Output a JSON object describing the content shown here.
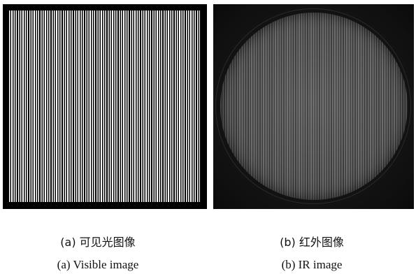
{
  "figures": {
    "visible": {
      "caption_cn": "(a) 可见光图像",
      "caption_en": "(a) Visible image"
    },
    "ir": {
      "caption_cn": "(b) 红外图像",
      "caption_en": "(b) IR image"
    }
  },
  "colors": {
    "visible_bar_light": "#ffffff",
    "visible_bar_dark": "#000000",
    "ir_bar_light": "#6d6d6d",
    "ir_bar_dark": "#3c3c3c",
    "ir_background": "#161616"
  }
}
